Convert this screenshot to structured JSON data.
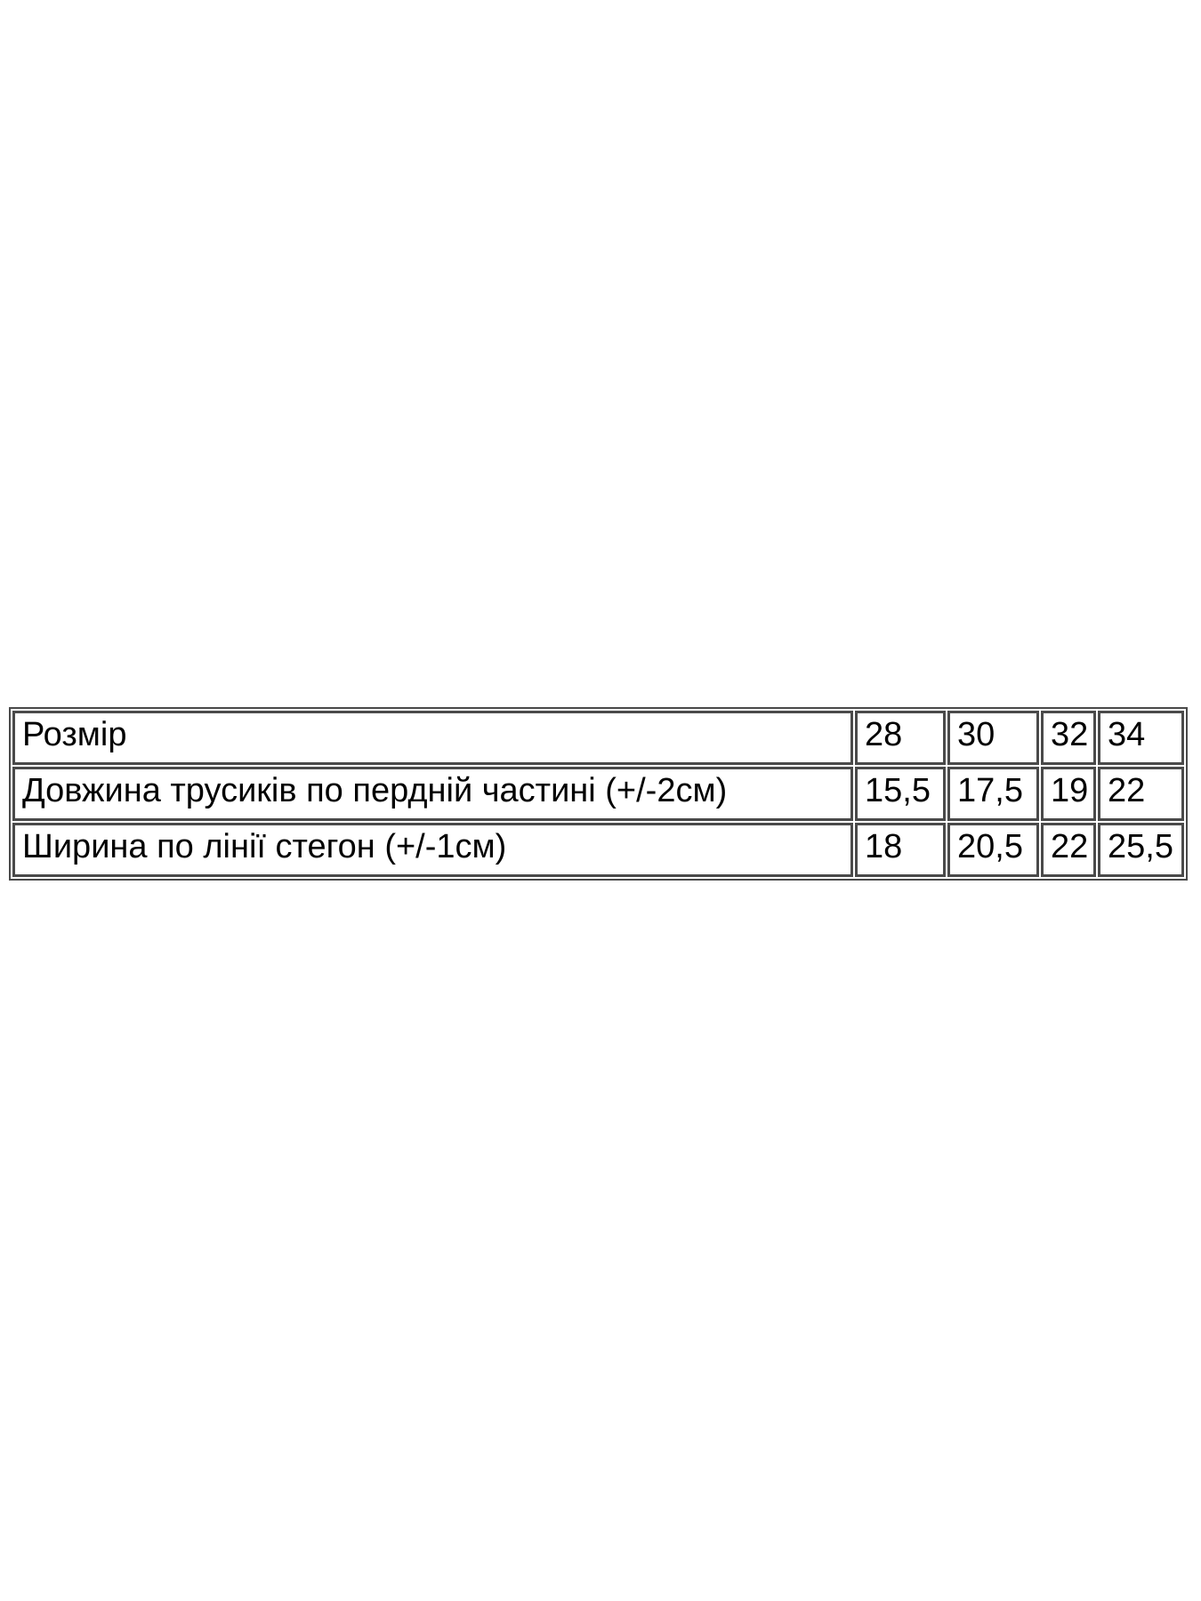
{
  "theme": {
    "page-bg": "#ffffff",
    "table-border": "#4a4a4a",
    "table-text": "#000000"
  },
  "table": {
    "rows": [
      {
        "label": "Розмір",
        "values": [
          "28",
          "30",
          "32",
          "34"
        ]
      },
      {
        "label": "Довжина трусиків по пердній частині (+/-2см)",
        "values": [
          "15,5",
          "17,5",
          "19",
          "22"
        ]
      },
      {
        "label": "Ширина по лінії стегон (+/-1см)",
        "values": [
          "18",
          "20,5",
          "22",
          "25,5"
        ]
      }
    ]
  }
}
